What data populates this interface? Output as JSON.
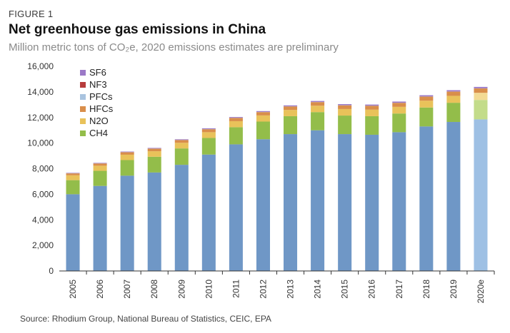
{
  "figure_label": "FIGURE 1",
  "source": "Source: Rhodium Group, National Bureau of Statistics, CEIC, EPA",
  "colors": {
    "CO2": "#6f97c6",
    "CO2_estimate": "#9ec0e4",
    "CH4": "#93bd4a",
    "CH4_estimate": "#c3dc8a",
    "N2O": "#e9c25a",
    "N2O_estimate": "#f3da93",
    "HFCs": "#d98e4a",
    "PFCs": "#a9c3df",
    "NF3": "#b73c3c",
    "SF6": "#9b79c7",
    "axis": "#333333"
  },
  "chart_data": {
    "type": "bar",
    "stacked": true,
    "title": "Net greenhouse gas emissions in China",
    "subtitle": "Million metric tons of CO₂e, 2020 emissions estimates are preliminary",
    "categories": [
      "2005",
      "2006",
      "2007",
      "2008",
      "2009",
      "2010",
      "2011",
      "2012",
      "2013",
      "2014",
      "2015",
      "2016",
      "2017",
      "2018",
      "2019",
      "2020e"
    ],
    "ylim": [
      0,
      16000
    ],
    "yticks": [
      0,
      2000,
      4000,
      6000,
      8000,
      10000,
      12000,
      14000,
      16000
    ],
    "ytick_labels": [
      "0",
      "2,000",
      "4,000",
      "6,000",
      "8,000",
      "10,000",
      "12,000",
      "14,000",
      "16,000"
    ],
    "legend": [
      "SF6",
      "NF3",
      "PFCs",
      "HFCs",
      "N2O",
      "CH4"
    ],
    "legend_position": "top-left",
    "grid": false,
    "series": [
      {
        "key": "CO2",
        "values": [
          6000,
          6650,
          7450,
          7700,
          8300,
          9100,
          9900,
          10300,
          10700,
          11000,
          10700,
          10650,
          10850,
          11300,
          11650,
          11850
        ]
      },
      {
        "key": "CH4",
        "name": "CH4",
        "values": [
          1100,
          1180,
          1220,
          1230,
          1280,
          1300,
          1340,
          1380,
          1400,
          1420,
          1450,
          1450,
          1460,
          1480,
          1500,
          1520
        ]
      },
      {
        "key": "N2O",
        "name": "N2O",
        "values": [
          380,
          400,
          420,
          430,
          440,
          450,
          470,
          480,
          490,
          500,
          510,
          510,
          520,
          530,
          540,
          560
        ]
      },
      {
        "key": "HFCs",
        "name": "HFCs",
        "values": [
          150,
          170,
          190,
          200,
          210,
          230,
          250,
          260,
          270,
          280,
          290,
          300,
          310,
          320,
          330,
          340
        ]
      },
      {
        "key": "PFCs",
        "name": "PFCs",
        "values": [
          10,
          10,
          10,
          10,
          10,
          10,
          10,
          10,
          10,
          10,
          10,
          10,
          10,
          10,
          10,
          10
        ]
      },
      {
        "key": "NF3",
        "name": "NF3",
        "values": [
          5,
          5,
          5,
          5,
          5,
          5,
          5,
          5,
          5,
          5,
          5,
          5,
          5,
          5,
          5,
          5
        ]
      },
      {
        "key": "SF6",
        "name": "SF6",
        "values": [
          30,
          35,
          40,
          45,
          50,
          55,
          60,
          65,
          70,
          75,
          80,
          85,
          90,
          95,
          100,
          105
        ]
      }
    ]
  }
}
